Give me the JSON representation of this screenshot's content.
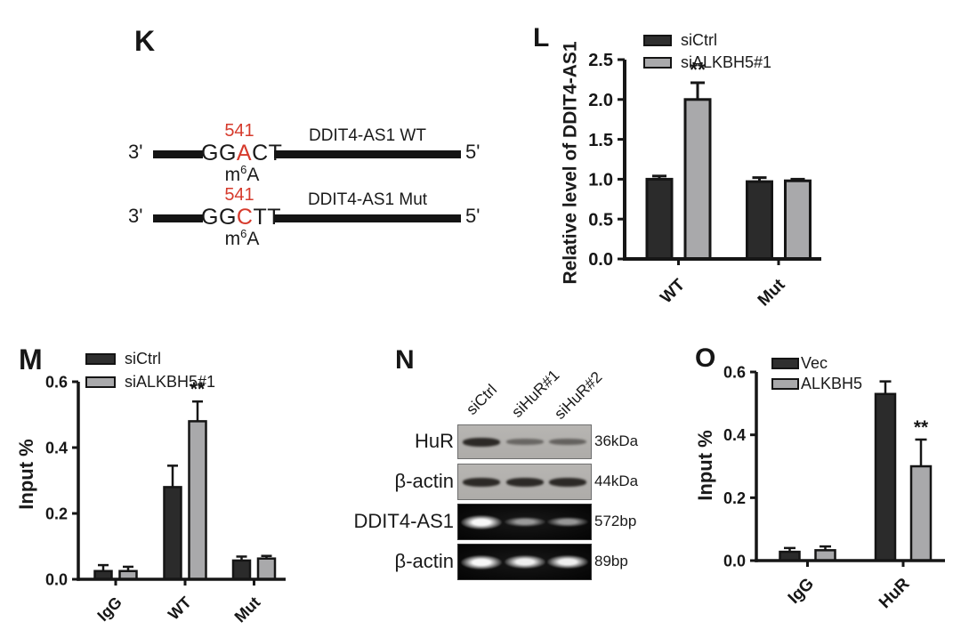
{
  "figure": {
    "background": "#ffffff"
  },
  "colors": {
    "dark_bar": "#2b2b2b",
    "gray_bar": "#a9a9ab",
    "red_highlight": "#d63a2c",
    "axis": "#161616"
  },
  "panels": {
    "K": {
      "label": "K",
      "rows": [
        {
          "position": "541",
          "left_end": "3'",
          "right_end": "5'",
          "seq_pre": "GG",
          "seq_red": "A",
          "seq_post": "CT",
          "name": "DDIT4-AS1 WT",
          "m6a": {
            "base": "m",
            "sup": "6",
            "tail": "A"
          }
        },
        {
          "position": "541",
          "left_end": "3'",
          "right_end": "5'",
          "seq_pre": "GG",
          "seq_red": "C",
          "seq_post": "TT",
          "name": "DDIT4-AS1 Mut",
          "m6a": {
            "base": "m",
            "sup": "6",
            "tail": "A"
          }
        }
      ]
    },
    "L": {
      "label": "L"
    },
    "M": {
      "label": "M"
    },
    "N": {
      "label": "N",
      "lanes": [
        "siCtrl",
        "siHuR#1",
        "siHuR#2"
      ],
      "rows": [
        {
          "target": "HuR",
          "size": "36kDa",
          "type": "western",
          "band_intensities": [
            1,
            0.35,
            0.4
          ]
        },
        {
          "target": "β-actin",
          "size": "44kDa",
          "type": "western",
          "band_intensities": [
            1,
            1,
            1
          ]
        },
        {
          "target": "DDIT4-AS1",
          "size": "572bp",
          "type": "gel",
          "band_intensities": [
            1,
            0.45,
            0.45
          ]
        },
        {
          "target": "β-actin",
          "size": "89bp",
          "type": "gel",
          "band_intensities": [
            1,
            0.95,
            0.95
          ]
        }
      ]
    },
    "O": {
      "label": "O"
    }
  },
  "chart_data": [
    {
      "id": "L",
      "type": "bar",
      "title": "",
      "xlabel": "",
      "ylabel": "Relative level of DDIT4-AS1",
      "categories": [
        "WT",
        "Mut"
      ],
      "series": [
        {
          "name": "siCtrl",
          "color": "#2b2b2b",
          "values": [
            1.0,
            0.97
          ],
          "errors": [
            0.04,
            0.05
          ]
        },
        {
          "name": "siALKBH5#1",
          "color": "#a9a9ab",
          "values": [
            2.0,
            0.98
          ],
          "errors": [
            0.21,
            0.02
          ]
        }
      ],
      "ylim": [
        0,
        2.5
      ],
      "yticks": [
        0,
        0.5,
        1.0,
        1.5,
        2.0,
        2.5
      ],
      "grid": false,
      "legend_position": "top",
      "significance": [
        {
          "category": "WT",
          "series": "siALKBH5#1",
          "label": "**"
        }
      ]
    },
    {
      "id": "M",
      "type": "bar",
      "title": "",
      "xlabel": "",
      "ylabel": "Input %",
      "categories": [
        "IgG",
        "WT",
        "Mut"
      ],
      "series": [
        {
          "name": "siCtrl",
          "color": "#2b2b2b",
          "values": [
            0.025,
            0.28,
            0.057
          ],
          "errors": [
            0.018,
            0.065,
            0.012
          ]
        },
        {
          "name": "siALKBH5#1",
          "color": "#a9a9ab",
          "values": [
            0.025,
            0.48,
            0.063
          ],
          "errors": [
            0.013,
            0.06,
            0.008
          ]
        }
      ],
      "ylim": [
        0,
        0.6
      ],
      "yticks": [
        0,
        0.2,
        0.4,
        0.6
      ],
      "grid": false,
      "legend_position": "top",
      "significance": [
        {
          "category": "WT",
          "series": "siALKBH5#1",
          "label": "**"
        }
      ]
    },
    {
      "id": "O",
      "type": "bar",
      "title": "",
      "xlabel": "",
      "ylabel": "Input %",
      "categories": [
        "IgG",
        "HuR"
      ],
      "series": [
        {
          "name": "Vec",
          "color": "#2b2b2b",
          "values": [
            0.028,
            0.53
          ],
          "errors": [
            0.012,
            0.04
          ]
        },
        {
          "name": "ALKBH5",
          "color": "#a9a9ab",
          "values": [
            0.033,
            0.3
          ],
          "errors": [
            0.012,
            0.085
          ]
        }
      ],
      "ylim": [
        0,
        0.6
      ],
      "yticks": [
        0,
        0.2,
        0.4,
        0.6
      ],
      "grid": false,
      "legend_position": "top",
      "significance": [
        {
          "category": "HuR",
          "series": "ALKBH5",
          "label": "**"
        }
      ]
    }
  ]
}
